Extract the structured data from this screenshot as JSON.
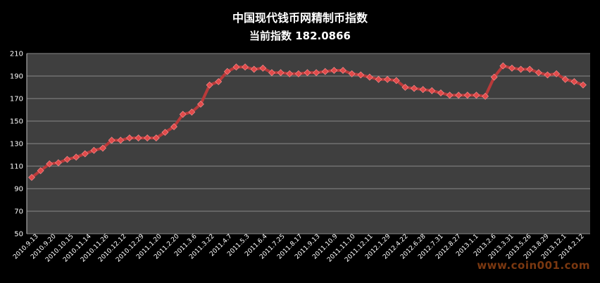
{
  "header": {
    "title": "中国现代钱币网精制币指数",
    "subtitle": "当前指数 182.0866"
  },
  "watermark": "www.coin001.com",
  "colors": {
    "background": "#000000",
    "plot_area": "#3f3f3f",
    "gridline": "#8a8a8a",
    "line": "#b83a3a",
    "marker": "#e14a4a"
  },
  "chart_data": {
    "type": "line",
    "title": "中国现代钱币网精制币指数",
    "subtitle": "当前指数 182.0866",
    "ylim": [
      50,
      210
    ],
    "yticks": [
      50,
      70,
      90,
      110,
      130,
      150,
      170,
      190,
      210
    ],
    "grid": true,
    "legend": "none",
    "x_tick_labels": [
      "2010.9.13",
      "2010.9.20",
      "2010.10.15",
      "2010.11.14",
      "2010.11.26",
      "2010.12.12",
      "2010.12.29",
      "2011.1.20",
      "2011.2.20",
      "2011.3.6",
      "2011.3.22",
      "2011.4.7",
      "2011.5.3",
      "2011.6.4",
      "2011.7.25",
      "2011.8.17",
      "2011.9.13",
      "2011.10.9",
      "2011.11.10",
      "2011.12.11",
      "2012.1.29",
      "2012.4.22",
      "2012.6.28",
      "2012.7.31",
      "2012.8.27",
      "2013.1.1",
      "2013.2.6",
      "2013.3.31",
      "2013.5.26",
      "2013.8.29",
      "2013.12.1",
      "2014.2.12"
    ],
    "values": [
      100,
      106,
      112,
      113,
      116,
      118,
      121,
      124,
      126,
      133,
      133,
      135,
      135,
      135,
      135,
      140,
      145,
      156,
      158,
      165,
      182,
      185,
      194,
      198,
      198,
      196,
      197,
      193,
      193,
      192,
      192,
      193,
      193,
      194,
      195,
      195,
      192,
      191,
      189,
      187,
      187,
      186,
      180,
      179,
      178,
      177,
      175,
      173,
      173,
      173,
      173,
      172,
      189,
      199,
      197,
      196,
      196,
      193,
      191,
      192,
      187,
      185,
      182.0866
    ]
  }
}
